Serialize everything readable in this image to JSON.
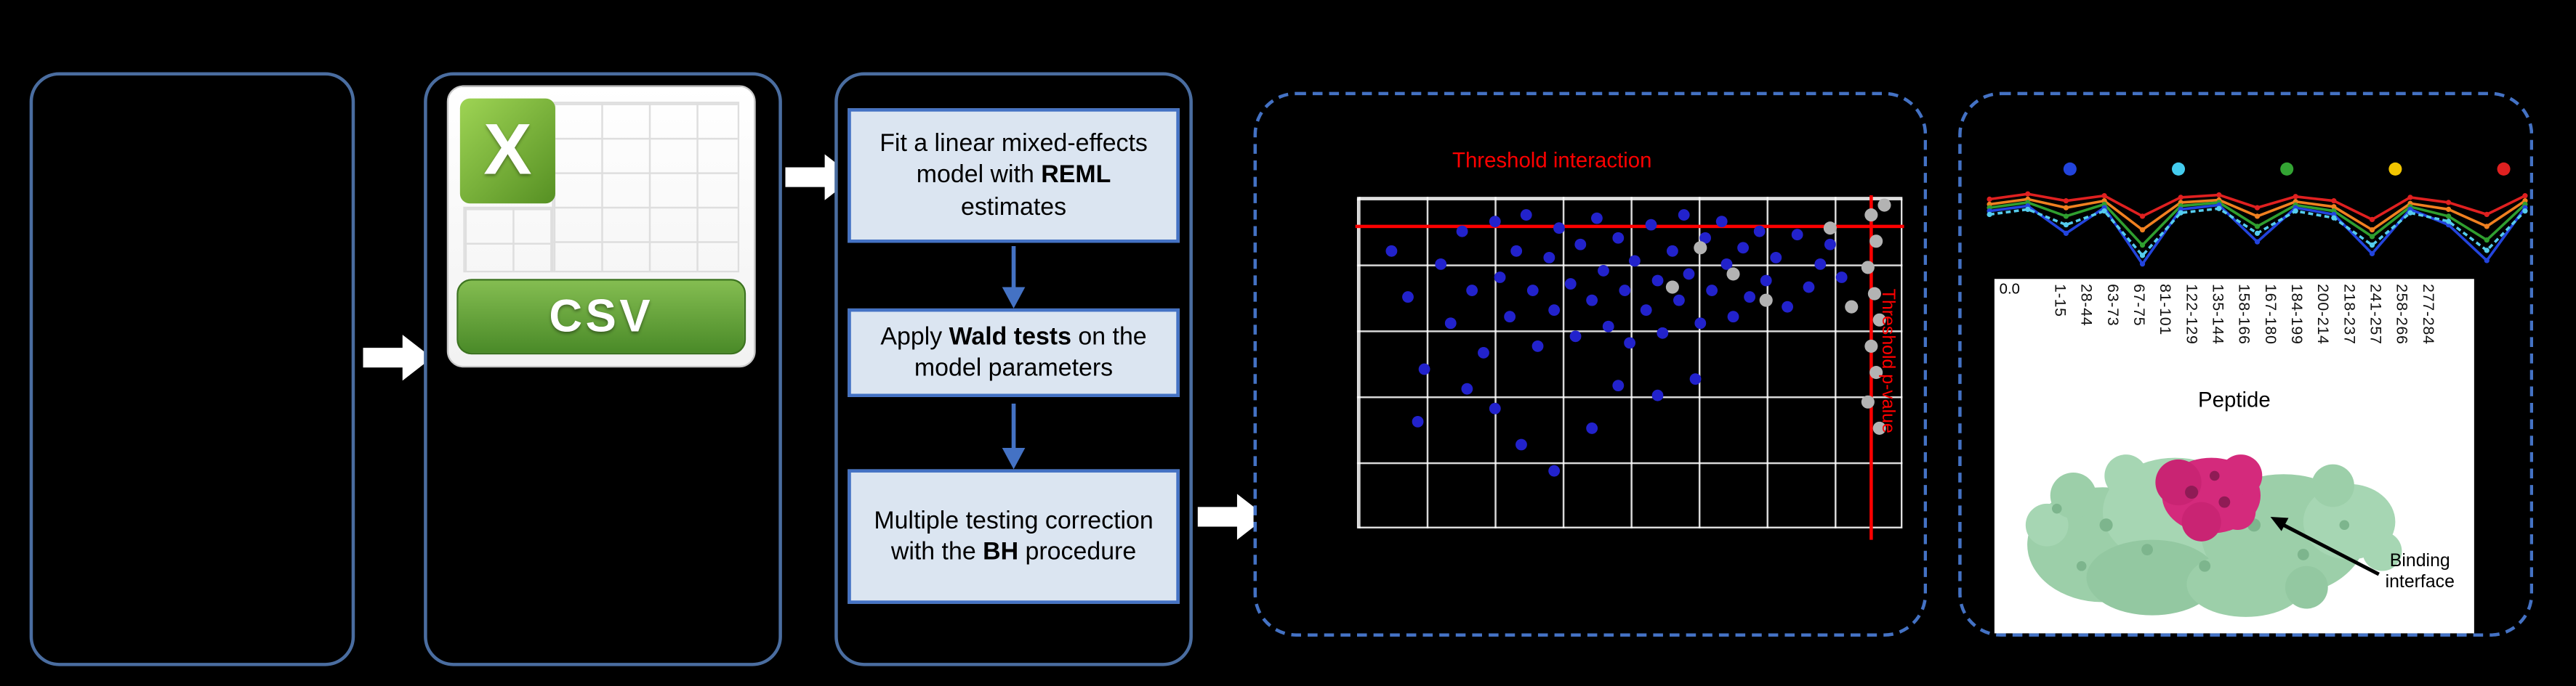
{
  "colors": {
    "background": "#000000",
    "panel_border": "#4a6da0",
    "dashed_border": "#4472c4",
    "step_box_fill": "#dbe5f1",
    "step_box_border": "#4472c4",
    "threshold_red": "#ff0000",
    "scatter_blue": "#2222cc",
    "scatter_gray": "#b3b3b3",
    "csv_green": "#4a8a28",
    "protein_green": "#9ccfa9",
    "binding_magenta": "#d42a7c"
  },
  "flow": {
    "csv_icon": {
      "letter": "X",
      "label": "CSV"
    },
    "steps": [
      {
        "pre": "Fit a linear mixed-effects model with ",
        "bold": "REML",
        "post": " estimates"
      },
      {
        "pre": "Apply ",
        "bold": "Wald tests",
        "post": " on the model parameters"
      },
      {
        "pre": "Multiple testing correction\nwith the ",
        "bold": "BH",
        "post": " procedure"
      }
    ]
  },
  "volcano": {
    "title_label": "Threshold interaction",
    "side_label": "Threshold p-value",
    "hline_y": 0.08,
    "vline_x": 0.943,
    "points_blue": [
      [
        0.06,
        0.16
      ],
      [
        0.09,
        0.3
      ],
      [
        0.12,
        0.52
      ],
      [
        0.15,
        0.2
      ],
      [
        0.17,
        0.38
      ],
      [
        0.19,
        0.1
      ],
      [
        0.21,
        0.28
      ],
      [
        0.23,
        0.47
      ],
      [
        0.25,
        0.07
      ],
      [
        0.26,
        0.24
      ],
      [
        0.28,
        0.36
      ],
      [
        0.29,
        0.16
      ],
      [
        0.31,
        0.05
      ],
      [
        0.32,
        0.28
      ],
      [
        0.33,
        0.45
      ],
      [
        0.35,
        0.18
      ],
      [
        0.36,
        0.34
      ],
      [
        0.37,
        0.09
      ],
      [
        0.39,
        0.26
      ],
      [
        0.4,
        0.42
      ],
      [
        0.41,
        0.14
      ],
      [
        0.43,
        0.31
      ],
      [
        0.44,
        0.06
      ],
      [
        0.45,
        0.22
      ],
      [
        0.46,
        0.39
      ],
      [
        0.48,
        0.12
      ],
      [
        0.49,
        0.28
      ],
      [
        0.5,
        0.44
      ],
      [
        0.51,
        0.19
      ],
      [
        0.53,
        0.34
      ],
      [
        0.54,
        0.08
      ],
      [
        0.55,
        0.25
      ],
      [
        0.56,
        0.41
      ],
      [
        0.58,
        0.16
      ],
      [
        0.59,
        0.31
      ],
      [
        0.6,
        0.05
      ],
      [
        0.61,
        0.23
      ],
      [
        0.63,
        0.38
      ],
      [
        0.64,
        0.12
      ],
      [
        0.65,
        0.28
      ],
      [
        0.67,
        0.07
      ],
      [
        0.68,
        0.2
      ],
      [
        0.69,
        0.36
      ],
      [
        0.71,
        0.15
      ],
      [
        0.72,
        0.3
      ],
      [
        0.74,
        0.1
      ],
      [
        0.75,
        0.25
      ],
      [
        0.77,
        0.18
      ],
      [
        0.79,
        0.33
      ],
      [
        0.81,
        0.11
      ],
      [
        0.83,
        0.27
      ],
      [
        0.85,
        0.2
      ],
      [
        0.87,
        0.14
      ],
      [
        0.89,
        0.24
      ],
      [
        0.3,
        0.75
      ],
      [
        0.36,
        0.83
      ],
      [
        0.25,
        0.64
      ],
      [
        0.43,
        0.7
      ],
      [
        0.11,
        0.68
      ],
      [
        0.55,
        0.6
      ],
      [
        0.62,
        0.55
      ],
      [
        0.48,
        0.57
      ],
      [
        0.2,
        0.58
      ]
    ],
    "points_gray": [
      [
        0.945,
        0.05
      ],
      [
        0.955,
        0.13
      ],
      [
        0.94,
        0.21
      ],
      [
        0.95,
        0.29
      ],
      [
        0.96,
        0.37
      ],
      [
        0.945,
        0.45
      ],
      [
        0.955,
        0.53
      ],
      [
        0.94,
        0.62
      ],
      [
        0.96,
        0.7
      ],
      [
        0.63,
        0.15
      ],
      [
        0.69,
        0.23
      ],
      [
        0.75,
        0.31
      ],
      [
        0.58,
        0.27
      ],
      [
        0.87,
        0.09
      ],
      [
        0.91,
        0.33
      ],
      [
        0.97,
        0.02
      ]
    ]
  },
  "profile": {
    "y_axis_label": "0.0",
    "xlabel": "Peptide",
    "annotation": "Binding\ninterface",
    "tick_labels": [
      "1-15",
      "28-44",
      "63-73",
      "67-75",
      "81-101",
      "122-129",
      "135-144",
      "158-166",
      "167-180",
      "184-199",
      "200-214",
      "218-237",
      "241-257",
      "258-266",
      "277-284"
    ],
    "dot_colors": [
      "#2244dd",
      "#44ccee",
      "#33a433",
      "#f2c500",
      "#e02020"
    ],
    "series": [
      {
        "name": "red",
        "color": "#e02020",
        "dashed": false,
        "values": [
          0.82,
          0.88,
          0.8,
          0.86,
          0.62,
          0.84,
          0.87,
          0.72,
          0.85,
          0.8,
          0.58,
          0.84,
          0.78,
          0.64,
          0.86
        ]
      },
      {
        "name": "orange",
        "color": "#f08020",
        "dashed": false,
        "values": [
          0.76,
          0.82,
          0.72,
          0.8,
          0.46,
          0.78,
          0.81,
          0.62,
          0.79,
          0.73,
          0.46,
          0.77,
          0.7,
          0.5,
          0.8
        ]
      },
      {
        "name": "green",
        "color": "#2f9e2f",
        "dashed": false,
        "values": [
          0.72,
          0.78,
          0.62,
          0.76,
          0.28,
          0.74,
          0.78,
          0.5,
          0.75,
          0.68,
          0.38,
          0.73,
          0.62,
          0.34,
          0.76
        ]
      },
      {
        "name": "blue",
        "color": "#2244dd",
        "dashed": false,
        "values": [
          0.68,
          0.74,
          0.42,
          0.72,
          0.06,
          0.7,
          0.75,
          0.32,
          0.72,
          0.64,
          0.18,
          0.7,
          0.52,
          0.1,
          0.72
        ]
      },
      {
        "name": "cyan",
        "color": "#55ccee",
        "dashed": true,
        "values": [
          0.64,
          0.7,
          0.52,
          0.68,
          0.16,
          0.66,
          0.71,
          0.42,
          0.68,
          0.6,
          0.28,
          0.66,
          0.56,
          0.22,
          0.68
        ]
      }
    ]
  }
}
